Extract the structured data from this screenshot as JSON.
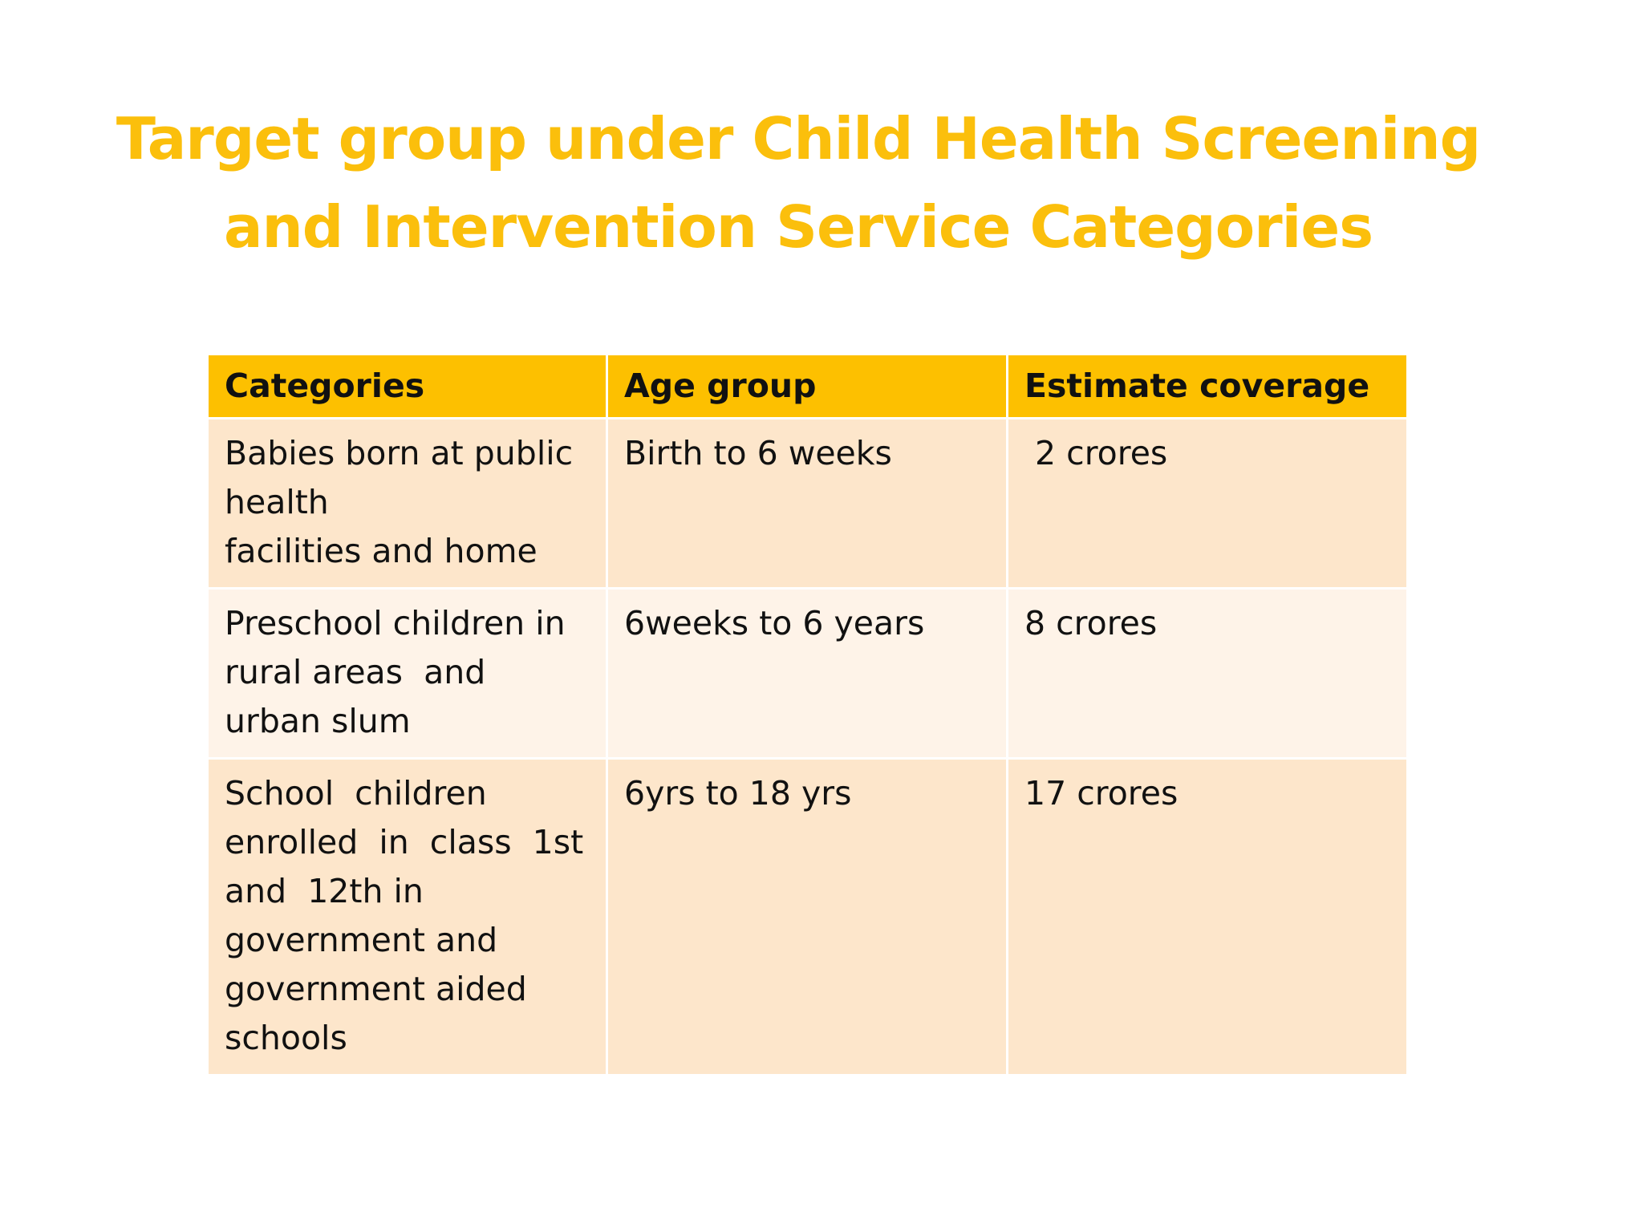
{
  "header": {
    "title": "Target group under Child Health Screening and Intervention Service Categories"
  },
  "table": {
    "columns": [
      "Categories",
      "Age group",
      "Estimate coverage"
    ],
    "rows": [
      [
        "Babies born at public\nhealth\nfacilities and home",
        "Birth to 6 weeks",
        " 2 crores"
      ],
      [
        "Preschool children in\nrural areas  and\nurban slum",
        "6weeks to 6 years",
        "8 crores"
      ],
      [
        "School  children\nenrolled  in  class  1st\nand  12th in\ngovernment and\ngovernment aided\nschools",
        "6yrs to 18 yrs",
        "17 crores"
      ]
    ]
  }
}
